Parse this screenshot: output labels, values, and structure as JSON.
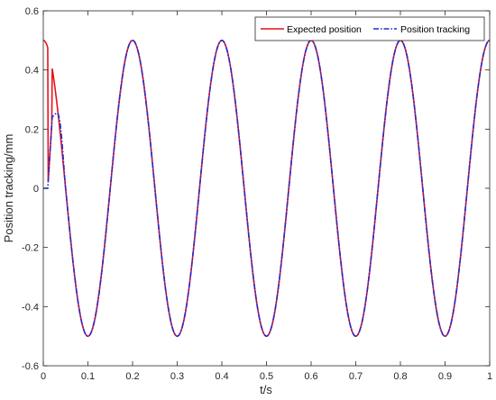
{
  "chart_data": {
    "type": "line",
    "title": "",
    "xlabel": "t/s",
    "ylabel": "Position tracking/mm",
    "xlim": [
      0,
      1
    ],
    "ylim": [
      -0.6,
      0.6
    ],
    "xticks": [
      "0",
      "0.1",
      "0.2",
      "0.3",
      "0.4",
      "0.5",
      "0.6",
      "0.7",
      "0.8",
      "0.9",
      "1"
    ],
    "yticks": [
      "0.6",
      "0.4",
      "0.2",
      "0",
      "-0.2",
      "-0.4",
      "-0.6"
    ],
    "grid": false,
    "legend_position": "top-right",
    "series": [
      {
        "name": "Expected position",
        "color": "#e8121b",
        "style": "solid",
        "function": "0.5*cos(2*pi*5*t)",
        "x": [
          0,
          0.01,
          0.02,
          0.03,
          0.05,
          0.1,
          0.15,
          0.2,
          0.25,
          0.3,
          0.35,
          0.4,
          0.45,
          0.5,
          0.55,
          0.6,
          0.65,
          0.7,
          0.75,
          0.8,
          0.85,
          0.9,
          0.95,
          1.0
        ],
        "values": [
          0.5,
          0.476,
          0.405,
          0.294,
          0,
          -0.5,
          0,
          0.5,
          0,
          -0.5,
          0,
          0.5,
          0,
          -0.5,
          0,
          0.5,
          0,
          -0.5,
          0,
          0.5,
          0,
          -0.5,
          0,
          0.5
        ]
      },
      {
        "name": "Position tracking",
        "color": "#1f2bd6",
        "style": "dash-dot",
        "x": [
          0,
          0.01,
          0.02,
          0.025,
          0.03,
          0.04,
          0.05,
          0.1,
          0.15,
          0.2,
          0.25,
          0.3,
          0.35,
          0.4,
          0.45,
          0.5,
          0.55,
          0.6,
          0.65,
          0.7,
          0.75,
          0.8,
          0.85,
          0.9,
          0.95,
          1.0
        ],
        "values": [
          0,
          0,
          0.24,
          0.25,
          0.23,
          0.15,
          0,
          -0.5,
          0,
          0.5,
          0,
          -0.5,
          0,
          0.5,
          0,
          -0.5,
          0,
          0.5,
          0,
          -0.5,
          0,
          0.5,
          0,
          -0.5,
          0,
          0.5
        ]
      }
    ]
  }
}
